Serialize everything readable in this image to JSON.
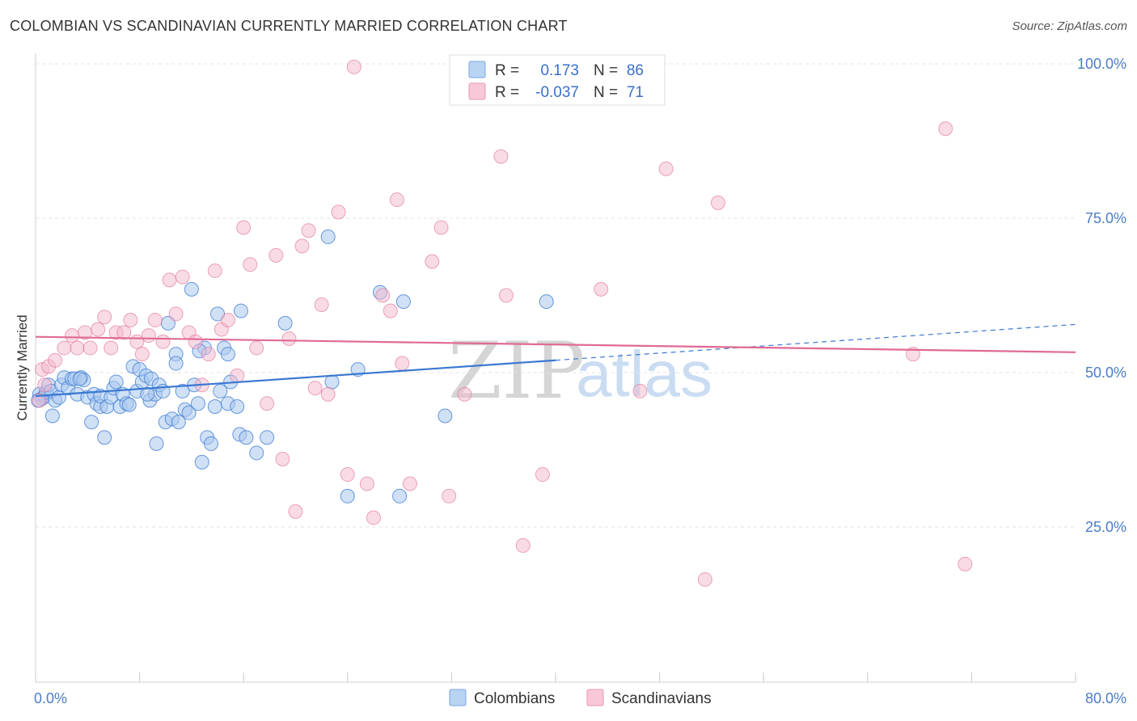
{
  "title": "COLOMBIAN VS SCANDINAVIAN CURRENTLY MARRIED CORRELATION CHART",
  "source": "Source: ZipAtlas.com",
  "watermark": {
    "zip": "ZIP",
    "atlas": "atlas"
  },
  "colors": {
    "colombians": "#3a78d1",
    "colombians_fill": "#a9c8ef",
    "scandinavians": "#e06a94",
    "scandinavians_fill": "#f4b8cc"
  },
  "legend_top": {
    "rows": [
      {
        "r_label": "R =",
        "r_value": "0.173",
        "n_label": "N =",
        "n_value": "86"
      },
      {
        "r_label": "R =",
        "r_value": "-0.037",
        "n_label": "N =",
        "n_value": "71"
      }
    ]
  },
  "legend_bottom": [
    "Colombians",
    "Scandinavians"
  ],
  "chart_data": {
    "type": "scatter",
    "ylabel": "Currently Married",
    "xlim": [
      0,
      80
    ],
    "ylim": [
      0,
      105
    ],
    "x_tick_labels": [
      "0.0%",
      "80.0%"
    ],
    "y_ticks": [
      25,
      50,
      75,
      100
    ],
    "y_tick_labels": [
      "25.0%",
      "50.0%",
      "75.0%",
      "100.0%"
    ],
    "grid": true,
    "series": [
      {
        "name": "Colombians",
        "r": 0.173,
        "n": 86,
        "trend": {
          "x0": 0,
          "y0": 46.2,
          "x1": 40,
          "y1": 52.0,
          "dashed_to_x": 80,
          "dashed_to_y": 57.8
        },
        "points": [
          [
            0.3,
            46.5
          ],
          [
            0.5,
            45.8
          ],
          [
            0.7,
            46.2
          ],
          [
            0.8,
            46.8
          ],
          [
            1.0,
            48.0
          ],
          [
            1.2,
            47.0
          ],
          [
            1.3,
            43.0
          ],
          [
            1.5,
            45.5
          ],
          [
            1.8,
            46.0
          ],
          [
            2.0,
            48.0
          ],
          [
            2.2,
            49.2
          ],
          [
            2.5,
            47.5
          ],
          [
            2.8,
            49.0
          ],
          [
            3.0,
            49.0
          ],
          [
            3.2,
            46.5
          ],
          [
            3.5,
            49.2
          ],
          [
            3.7,
            48.8
          ],
          [
            4.0,
            46.0
          ],
          [
            4.3,
            42.0
          ],
          [
            4.5,
            46.5
          ],
          [
            4.7,
            45.0
          ],
          [
            5.0,
            44.5
          ],
          [
            5.0,
            46.2
          ],
          [
            5.3,
            39.5
          ],
          [
            5.5,
            44.5
          ],
          [
            5.8,
            46.0
          ],
          [
            6.0,
            47.5
          ],
          [
            6.2,
            48.5
          ],
          [
            6.5,
            44.5
          ],
          [
            6.7,
            46.5
          ],
          [
            7.0,
            45.0
          ],
          [
            7.2,
            44.8
          ],
          [
            7.5,
            51.0
          ],
          [
            7.8,
            47.0
          ],
          [
            8.0,
            50.5
          ],
          [
            8.2,
            48.5
          ],
          [
            8.5,
            49.5
          ],
          [
            8.8,
            45.5
          ],
          [
            8.9,
            49.0
          ],
          [
            9.2,
            46.5
          ],
          [
            9.3,
            38.5
          ],
          [
            9.5,
            48.0
          ],
          [
            9.8,
            47.0
          ],
          [
            10.0,
            42.0
          ],
          [
            10.2,
            58.0
          ],
          [
            10.5,
            42.5
          ],
          [
            10.8,
            53.0
          ],
          [
            10.8,
            51.5
          ],
          [
            11.0,
            42.0
          ],
          [
            11.3,
            47.0
          ],
          [
            11.5,
            44.0
          ],
          [
            11.8,
            43.5
          ],
          [
            12.0,
            63.5
          ],
          [
            12.2,
            48.0
          ],
          [
            12.5,
            45.0
          ],
          [
            12.8,
            35.5
          ],
          [
            13.0,
            54.0
          ],
          [
            13.2,
            39.5
          ],
          [
            13.5,
            38.5
          ],
          [
            13.8,
            44.5
          ],
          [
            14.0,
            59.5
          ],
          [
            14.2,
            47.0
          ],
          [
            14.5,
            54.0
          ],
          [
            14.8,
            45.0
          ],
          [
            14.8,
            53.0
          ],
          [
            15.0,
            48.5
          ],
          [
            15.5,
            44.5
          ],
          [
            15.7,
            40.0
          ],
          [
            15.8,
            60.0
          ],
          [
            16.2,
            39.5
          ],
          [
            17.0,
            37.0
          ],
          [
            17.8,
            39.5
          ],
          [
            19.2,
            58.0
          ],
          [
            22.5,
            72.0
          ],
          [
            22.8,
            48.5
          ],
          [
            24.0,
            30.0
          ],
          [
            24.8,
            50.5
          ],
          [
            26.5,
            63.0
          ],
          [
            28.0,
            30.0
          ],
          [
            28.3,
            61.5
          ],
          [
            31.5,
            43.0
          ],
          [
            39.3,
            61.5
          ],
          [
            0.2,
            45.5
          ],
          [
            3.4,
            49.0
          ],
          [
            8.6,
            46.5
          ],
          [
            12.6,
            53.5
          ]
        ]
      },
      {
        "name": "Scandinavians",
        "r": -0.037,
        "n": 71,
        "trend": {
          "x0": 0,
          "y0": 55.8,
          "x1": 80,
          "y1": 53.3
        },
        "points": [
          [
            0.3,
            45.5
          ],
          [
            0.5,
            50.5
          ],
          [
            0.7,
            48.0
          ],
          [
            1.0,
            51.0
          ],
          [
            1.5,
            52.0
          ],
          [
            2.2,
            54.0
          ],
          [
            2.8,
            56.0
          ],
          [
            3.2,
            54.0
          ],
          [
            3.8,
            56.5
          ],
          [
            4.2,
            54.0
          ],
          [
            4.8,
            57.0
          ],
          [
            5.3,
            59.0
          ],
          [
            5.8,
            54.0
          ],
          [
            6.2,
            56.5
          ],
          [
            6.8,
            56.5
          ],
          [
            7.3,
            58.5
          ],
          [
            7.8,
            55.0
          ],
          [
            8.2,
            53.0
          ],
          [
            8.7,
            56.0
          ],
          [
            9.2,
            58.5
          ],
          [
            9.8,
            55.0
          ],
          [
            10.3,
            65.0
          ],
          [
            10.8,
            59.5
          ],
          [
            11.3,
            65.5
          ],
          [
            11.8,
            56.5
          ],
          [
            12.3,
            55.0
          ],
          [
            12.8,
            48.0
          ],
          [
            13.3,
            53.0
          ],
          [
            13.8,
            66.5
          ],
          [
            14.3,
            57.0
          ],
          [
            14.8,
            58.5
          ],
          [
            15.5,
            49.5
          ],
          [
            16.0,
            73.5
          ],
          [
            16.5,
            67.5
          ],
          [
            17.0,
            54.0
          ],
          [
            17.8,
            45.0
          ],
          [
            18.5,
            69.0
          ],
          [
            19.0,
            36.0
          ],
          [
            19.5,
            55.5
          ],
          [
            20.0,
            27.5
          ],
          [
            20.5,
            70.5
          ],
          [
            21.0,
            73.0
          ],
          [
            21.5,
            47.5
          ],
          [
            22.0,
            61.0
          ],
          [
            22.5,
            46.5
          ],
          [
            23.3,
            76.0
          ],
          [
            24.0,
            33.5
          ],
          [
            24.5,
            99.5
          ],
          [
            25.5,
            32.0
          ],
          [
            26.0,
            26.5
          ],
          [
            26.7,
            62.5
          ],
          [
            27.3,
            60.0
          ],
          [
            27.8,
            78.0
          ],
          [
            28.2,
            51.5
          ],
          [
            28.8,
            32.0
          ],
          [
            30.5,
            68.0
          ],
          [
            31.2,
            73.5
          ],
          [
            31.8,
            30.0
          ],
          [
            33.0,
            46.5
          ],
          [
            35.8,
            85.0
          ],
          [
            36.2,
            62.5
          ],
          [
            37.5,
            22.0
          ],
          [
            39.0,
            33.5
          ],
          [
            43.5,
            63.5
          ],
          [
            46.5,
            47.0
          ],
          [
            48.5,
            83.0
          ],
          [
            51.5,
            16.5
          ],
          [
            52.5,
            77.5
          ],
          [
            67.5,
            53.0
          ],
          [
            70.0,
            89.5
          ],
          [
            71.5,
            19.0
          ]
        ]
      }
    ]
  }
}
